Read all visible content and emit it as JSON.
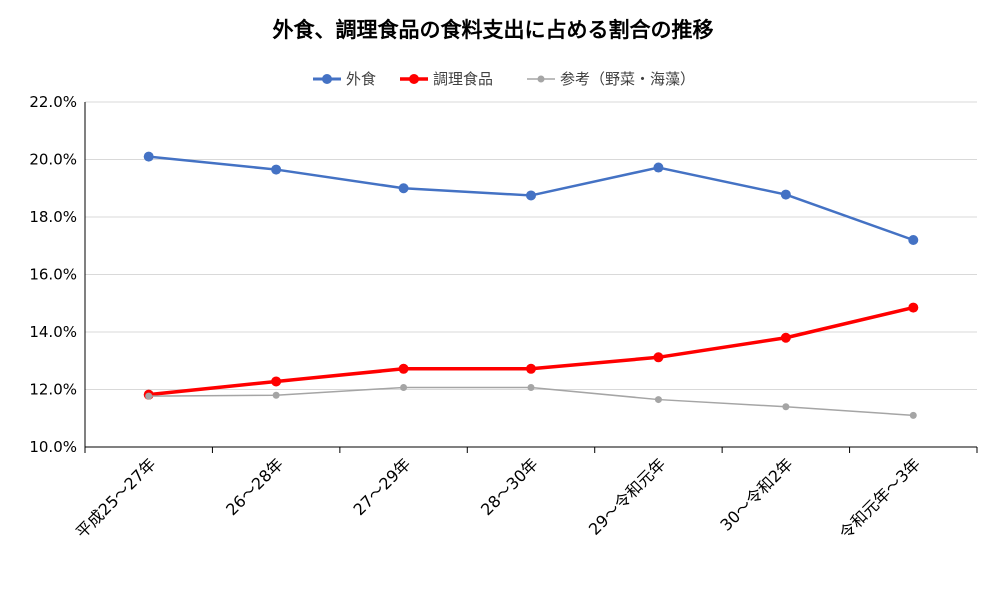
{
  "chart_data": {
    "type": "line",
    "title": "外食、調理食品の食料支出に占める割合の推移",
    "categories": [
      "平成25～27年",
      "26～28年",
      "27～29年",
      "28～30年",
      "29～令和元年",
      "30～令和2年",
      "令和元年～3年"
    ],
    "ylim": [
      10.0,
      22.0
    ],
    "y_ticks": [
      "10.0%",
      "12.0%",
      "14.0%",
      "16.0%",
      "18.0%",
      "20.0%",
      "22.0%"
    ],
    "grid": true,
    "legend_position": "top-center",
    "series": [
      {
        "name": "外食",
        "color": "#4472c4",
        "values": [
          20.1,
          19.65,
          19.0,
          18.75,
          19.72,
          18.78,
          17.2
        ]
      },
      {
        "name": "調理食品",
        "color": "#ff0000",
        "values": [
          11.82,
          12.28,
          12.72,
          12.72,
          13.12,
          13.8,
          14.85
        ]
      },
      {
        "name": "参考（野菜・海藻）",
        "color": "#a5a5a5",
        "values": [
          11.77,
          11.8,
          12.07,
          12.07,
          11.65,
          11.4,
          11.1
        ]
      }
    ]
  }
}
